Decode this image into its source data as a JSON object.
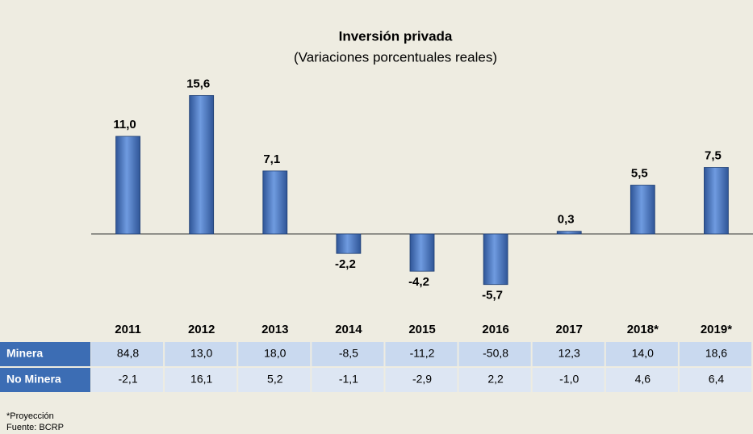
{
  "chart_data": {
    "type": "bar",
    "title": "Inversión privada",
    "subtitle": "(Variaciones porcentuales reales)",
    "categories": [
      "2011",
      "2012",
      "2013",
      "2014",
      "2015",
      "2016",
      "2017",
      "2018*",
      "2019*"
    ],
    "values": [
      11.0,
      15.6,
      7.1,
      -2.2,
      -4.2,
      -5.7,
      0.3,
      5.5,
      7.5
    ],
    "value_labels": [
      "11,0",
      "15,6",
      "7,1",
      "-2,2",
      "-4,2",
      "-5,7",
      "0,3",
      "5,5",
      "7,5"
    ],
    "color": "#4f81bd"
  },
  "table": {
    "rows": [
      {
        "label": "Minera",
        "values": [
          "84,8",
          "13,0",
          "18,0",
          "-8,5",
          "-11,2",
          "-50,8",
          "12,3",
          "14,0",
          "18,6"
        ]
      },
      {
        "label": "No Minera",
        "values": [
          "-2,1",
          "16,1",
          "5,2",
          "-1,1",
          "-2,9",
          "2,2",
          "-1,0",
          "4,6",
          "6,4"
        ]
      }
    ]
  },
  "footnotes": [
    "*Proyección",
    "Fuente: BCRP"
  ]
}
